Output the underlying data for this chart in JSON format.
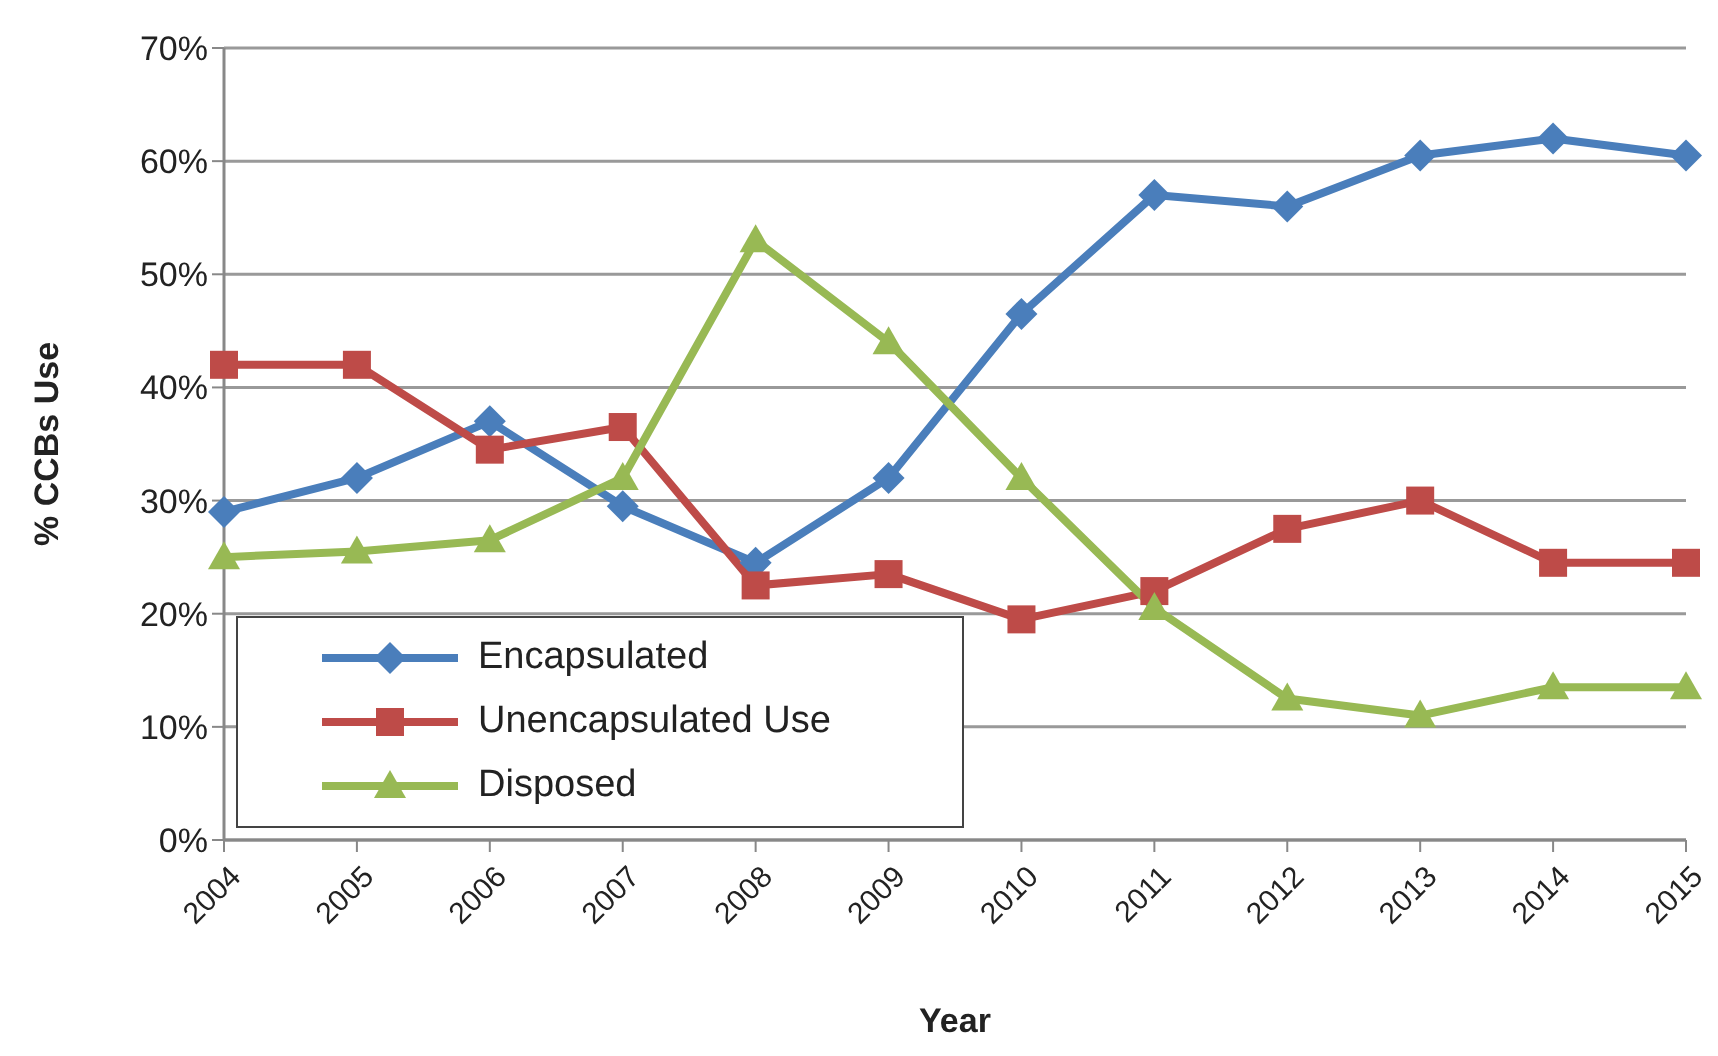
{
  "chart_data": {
    "type": "line",
    "xlabel": "Year",
    "ylabel": "% CCBs Use",
    "categories": [
      "2004",
      "2005",
      "2006",
      "2007",
      "2008",
      "2009",
      "2010",
      "2011",
      "2012",
      "2013",
      "2014",
      "2015"
    ],
    "series": [
      {
        "name": "Encapsulated",
        "color": "#4a7ebb",
        "marker": "diamond",
        "values": [
          29,
          32,
          37,
          29.5,
          24.5,
          32,
          46.5,
          57,
          56,
          60.5,
          62,
          60.5
        ]
      },
      {
        "name": "Unencapsulated Use",
        "color": "#be4b48",
        "marker": "square",
        "values": [
          42,
          42,
          34.5,
          36.5,
          22.5,
          23.5,
          19.5,
          22,
          27.5,
          30,
          24.5,
          24.5
        ]
      },
      {
        "name": "Disposed",
        "color": "#98b954",
        "marker": "triangle",
        "values": [
          25,
          25.5,
          26.5,
          32,
          53,
          44,
          32,
          20.5,
          12.5,
          11,
          13.5,
          13.5
        ]
      }
    ],
    "ylim": [
      0,
      70
    ],
    "yticks": [
      {
        "value": 0,
        "label": "0%"
      },
      {
        "value": 10,
        "label": "10%"
      },
      {
        "value": 20,
        "label": "20%"
      },
      {
        "value": 30,
        "label": "30%"
      },
      {
        "value": 40,
        "label": "40%"
      },
      {
        "value": 50,
        "label": "50%"
      },
      {
        "value": 60,
        "label": "60%"
      },
      {
        "value": 70,
        "label": "70%"
      }
    ],
    "grid": "y",
    "legend": "bottom left",
    "line_style": "solid"
  }
}
